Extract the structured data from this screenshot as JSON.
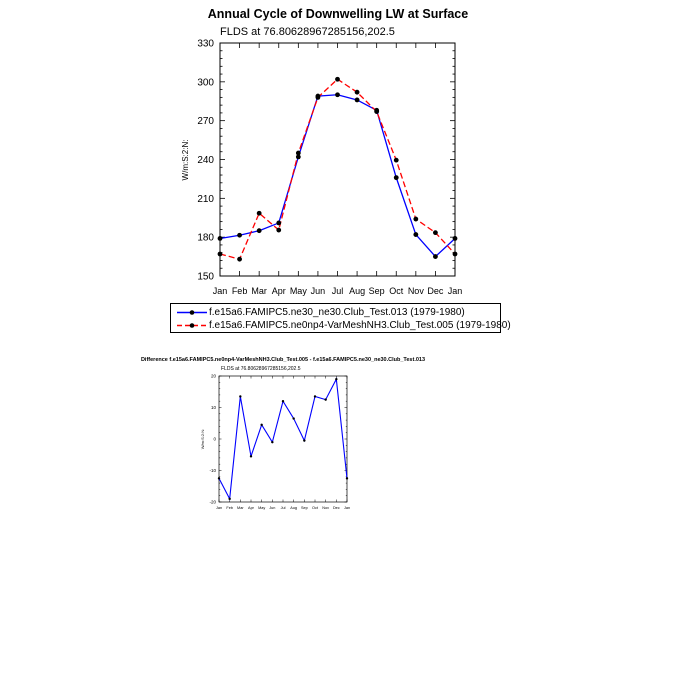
{
  "chart_data": [
    {
      "type": "line",
      "title": "Annual Cycle of Downwelling LW at Surface",
      "subtitle": "FLDS at 76.80628967285156,202.5",
      "ylabel": "W/m:S:2:N:",
      "ylim": [
        150,
        330
      ],
      "yticks": [
        150,
        180,
        210,
        240,
        270,
        300,
        330
      ],
      "categories": [
        "Jan",
        "Feb",
        "Mar",
        "Apr",
        "May",
        "Jun",
        "Jul",
        "Aug",
        "Sep",
        "Oct",
        "Nov",
        "Dec",
        "Jan"
      ],
      "legend_position": "below",
      "series": [
        {
          "name": "f.e15a6.FAMIPC5.ne30_ne30.Club_Test.013 (1979-1980)",
          "color": "#0000ff",
          "dash": "solid",
          "values": [
            179,
            181.5,
            185,
            191,
            242,
            289,
            290,
            286,
            278,
            226,
            182,
            165,
            179
          ]
        },
        {
          "name": "f.e15a6.FAMIPC5.ne0np4-VarMeshNH3.Club_Test.005 (1979-1980)",
          "color": "#ff0000",
          "dash": "dashed",
          "values": [
            167,
            163,
            198.5,
            185.5,
            245,
            288,
            302,
            292,
            277,
            239.5,
            194,
            183.5,
            167
          ]
        }
      ]
    },
    {
      "type": "line",
      "title": "Difference f.e15a6.FAMIPC5.ne0np4-VarMeshNH3.Club_Test.005 - f.e15a6.FAMIPC5.ne30_ne30.Club_Test.013",
      "subtitle": "FLDS at 76.80628967285156,202.5",
      "ylabel": "W/m:S:2:N:",
      "ylim": [
        -20,
        20
      ],
      "yticks": [
        -20,
        -10,
        0,
        10,
        20
      ],
      "categories": [
        "Jan",
        "Feb",
        "Mar",
        "Apr",
        "May",
        "Jun",
        "Jul",
        "Aug",
        "Sep",
        "Oct",
        "Nov",
        "Dec",
        "Jan"
      ],
      "series": [
        {
          "color": "#0000ff",
          "values": [
            -12.5,
            -19,
            13.5,
            -5.5,
            4.5,
            -1,
            12,
            6.5,
            -0.5,
            13.5,
            12.5,
            19,
            -12.5
          ]
        }
      ]
    }
  ]
}
